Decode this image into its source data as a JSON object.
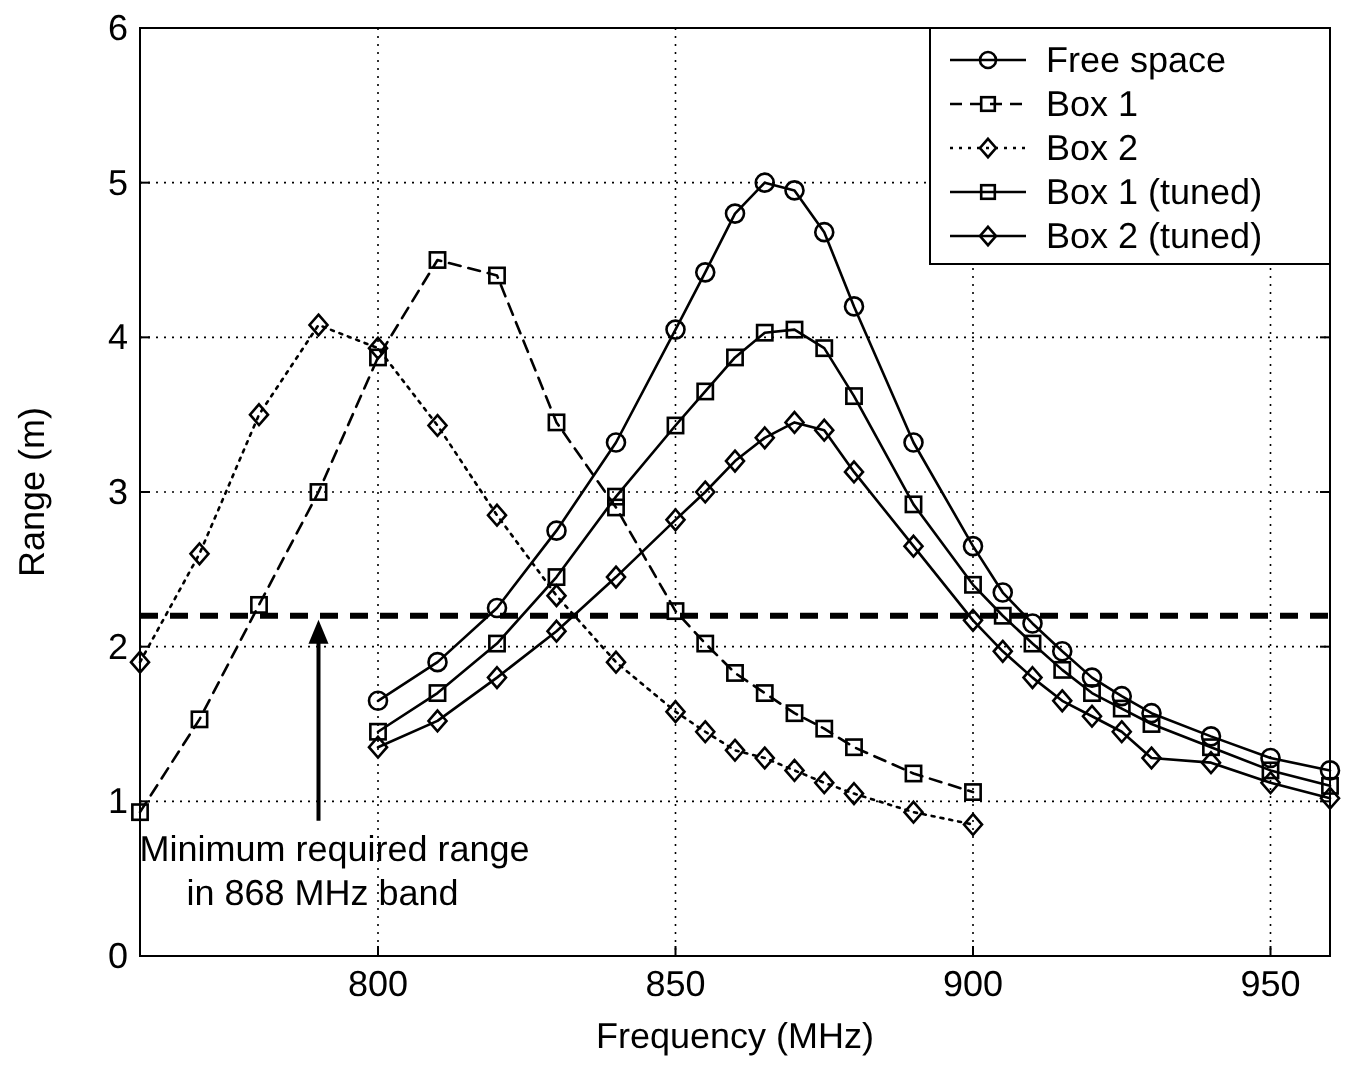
{
  "chart_data": {
    "type": "line",
    "xlabel": "Frequency (MHz)",
    "ylabel": "Range (m)",
    "xlim": [
      760,
      960
    ],
    "xticks": [
      800,
      850,
      900,
      950
    ],
    "ylim": [
      0,
      6
    ],
    "yticks": [
      0,
      1,
      2,
      3,
      4,
      5,
      6
    ],
    "grid": true,
    "legend": "top right",
    "series": [
      {
        "name": "Free space",
        "color": "#000000",
        "marker": "circle",
        "line_style": "solid",
        "x": [
          800,
          810,
          820,
          830,
          840,
          850,
          855,
          860,
          865,
          870,
          875,
          880,
          890,
          900,
          905,
          910,
          915,
          920,
          925,
          930,
          940,
          950,
          960
        ],
        "values": [
          1.65,
          1.9,
          2.25,
          2.75,
          3.32,
          4.05,
          4.42,
          4.8,
          5.0,
          4.95,
          4.68,
          4.2,
          3.32,
          2.65,
          2.35,
          2.15,
          1.97,
          1.8,
          1.68,
          1.57,
          1.42,
          1.28,
          1.2
        ]
      },
      {
        "name": "Box 1",
        "color": "#000000",
        "marker": "square",
        "line_style": "dashed",
        "x": [
          760,
          770,
          780,
          790,
          800,
          810,
          820,
          830,
          840,
          850,
          855,
          860,
          865,
          870,
          875,
          880,
          890,
          900
        ],
        "values": [
          0.93,
          1.53,
          2.27,
          3.0,
          3.87,
          4.5,
          4.4,
          3.45,
          2.9,
          2.23,
          2.02,
          1.83,
          1.7,
          1.57,
          1.47,
          1.35,
          1.18,
          1.06
        ]
      },
      {
        "name": "Box 2",
        "color": "#000000",
        "marker": "diamond",
        "line_style": "dotted",
        "x": [
          760,
          770,
          780,
          790,
          800,
          810,
          820,
          830,
          840,
          850,
          855,
          860,
          865,
          870,
          875,
          880,
          890,
          900
        ],
        "values": [
          1.9,
          2.6,
          3.5,
          4.08,
          3.93,
          3.43,
          2.85,
          2.33,
          1.9,
          1.58,
          1.45,
          1.33,
          1.28,
          1.2,
          1.12,
          1.05,
          0.93,
          0.85
        ]
      },
      {
        "name": "Box 1 (tuned)",
        "color": "#000000",
        "marker": "square",
        "line_style": "solid",
        "x": [
          800,
          810,
          820,
          830,
          840,
          850,
          855,
          860,
          865,
          870,
          875,
          880,
          890,
          900,
          905,
          910,
          915,
          920,
          925,
          930,
          940,
          950,
          960
        ],
        "values": [
          1.45,
          1.7,
          2.02,
          2.45,
          2.97,
          3.43,
          3.65,
          3.87,
          4.03,
          4.05,
          3.93,
          3.62,
          2.92,
          2.4,
          2.2,
          2.02,
          1.85,
          1.7,
          1.6,
          1.5,
          1.35,
          1.2,
          1.1
        ]
      },
      {
        "name": "Box 2 (tuned)",
        "color": "#000000",
        "marker": "diamond",
        "line_style": "solid",
        "x": [
          800,
          810,
          820,
          830,
          840,
          850,
          855,
          860,
          865,
          870,
          875,
          880,
          890,
          900,
          905,
          910,
          915,
          920,
          925,
          930,
          940,
          950,
          960
        ],
        "values": [
          1.35,
          1.52,
          1.8,
          2.1,
          2.45,
          2.82,
          3.0,
          3.2,
          3.35,
          3.45,
          3.4,
          3.13,
          2.65,
          2.17,
          1.97,
          1.8,
          1.65,
          1.55,
          1.45,
          1.28,
          1.25,
          1.12,
          1.02
        ]
      }
    ],
    "ref_lines": [
      {
        "axis": "y",
        "value": 2.2,
        "color": "#000000",
        "line_style": "dashed"
      }
    ],
    "annotations": [
      "Minimum required range\nin 868 MHz band"
    ]
  }
}
